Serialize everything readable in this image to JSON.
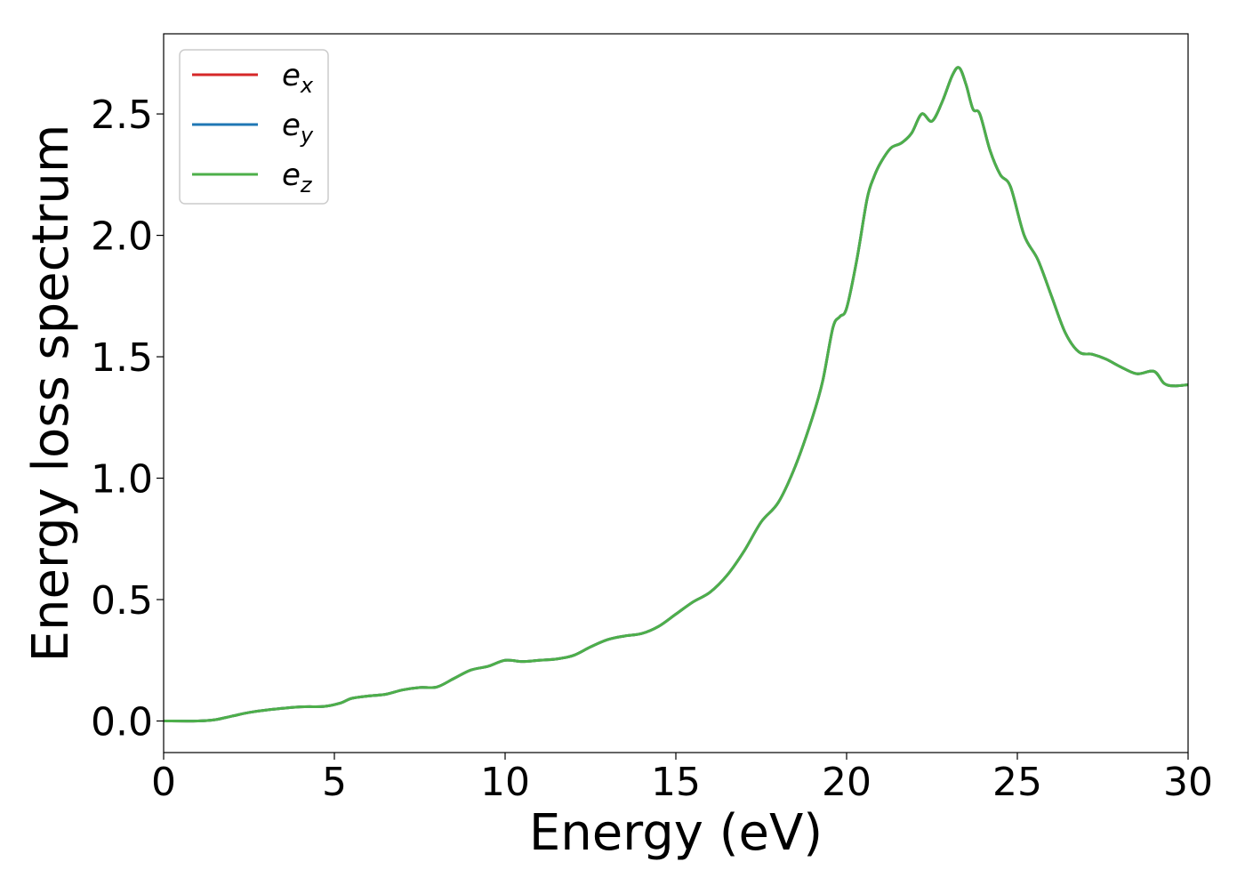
{
  "chart_data": {
    "type": "line",
    "title": "",
    "xlabel": "Energy (eV)",
    "ylabel": "Energy loss spectrum",
    "xlim": [
      0,
      30
    ],
    "ylim": [
      -0.13,
      2.83
    ],
    "xticks": [
      0,
      5,
      10,
      15,
      20,
      25,
      30
    ],
    "yticks": [
      0.0,
      0.5,
      1.0,
      1.5,
      2.0,
      2.5
    ],
    "xtick_labels": [
      "0",
      "5",
      "10",
      "15",
      "20",
      "25",
      "30"
    ],
    "ytick_labels": [
      "0.0",
      "0.5",
      "1.0",
      "1.5",
      "2.0",
      "2.5"
    ],
    "grid": false,
    "legend_position": "top-left",
    "colors": {
      "e_x": "#d62728",
      "e_y": "#1f77b4",
      "e_z": "#4daf4a"
    },
    "series": [
      {
        "name": "e_x",
        "label_base": "e",
        "label_sub": "x",
        "color": "#d62728",
        "x": [
          0,
          1,
          1.5,
          2,
          2.5,
          3,
          4,
          4.7,
          5.2,
          5.5,
          6,
          6.5,
          7,
          7.5,
          8,
          8.5,
          9,
          9.5,
          10,
          10.5,
          11,
          11.5,
          12,
          12.5,
          13,
          13.5,
          14,
          14.5,
          15,
          15.5,
          16,
          16.5,
          17,
          17.5,
          18,
          18.5,
          19,
          19.3,
          19.6,
          19.8,
          20,
          20.3,
          20.6,
          20.8,
          21,
          21.3,
          21.6,
          21.9,
          22.2,
          22.5,
          22.8,
          23.1,
          23.3,
          23.5,
          23.7,
          23.9,
          24.2,
          24.5,
          24.8,
          25.2,
          25.6,
          26,
          26.4,
          26.8,
          27.2,
          27.6,
          28,
          28.5,
          29,
          29.3,
          29.6,
          30
        ],
        "y": [
          0.0,
          0.0,
          0.005,
          0.02,
          0.035,
          0.045,
          0.058,
          0.06,
          0.075,
          0.093,
          0.103,
          0.11,
          0.128,
          0.138,
          0.14,
          0.175,
          0.21,
          0.225,
          0.25,
          0.245,
          0.25,
          0.255,
          0.27,
          0.305,
          0.335,
          0.35,
          0.36,
          0.39,
          0.44,
          0.49,
          0.53,
          0.6,
          0.7,
          0.82,
          0.9,
          1.05,
          1.25,
          1.4,
          1.62,
          1.665,
          1.7,
          1.9,
          2.15,
          2.24,
          2.3,
          2.36,
          2.38,
          2.42,
          2.5,
          2.47,
          2.55,
          2.66,
          2.69,
          2.62,
          2.52,
          2.5,
          2.35,
          2.25,
          2.2,
          2.0,
          1.9,
          1.75,
          1.6,
          1.52,
          1.51,
          1.49,
          1.46,
          1.43,
          1.44,
          1.39,
          1.38,
          1.385
        ]
      },
      {
        "name": "e_y",
        "label_base": "e",
        "label_sub": "y",
        "color": "#1f77b4",
        "x": [
          0,
          1,
          1.5,
          2,
          2.5,
          3,
          4,
          4.7,
          5.2,
          5.5,
          6,
          6.5,
          7,
          7.5,
          8,
          8.5,
          9,
          9.5,
          10,
          10.5,
          11,
          11.5,
          12,
          12.5,
          13,
          13.5,
          14,
          14.5,
          15,
          15.5,
          16,
          16.5,
          17,
          17.5,
          18,
          18.5,
          19,
          19.3,
          19.6,
          19.8,
          20,
          20.3,
          20.6,
          20.8,
          21,
          21.3,
          21.6,
          21.9,
          22.2,
          22.5,
          22.8,
          23.1,
          23.3,
          23.5,
          23.7,
          23.9,
          24.2,
          24.5,
          24.8,
          25.2,
          25.6,
          26,
          26.4,
          26.8,
          27.2,
          27.6,
          28,
          28.5,
          29,
          29.3,
          29.6,
          30
        ],
        "y": [
          0.0,
          0.0,
          0.005,
          0.02,
          0.035,
          0.045,
          0.058,
          0.06,
          0.075,
          0.093,
          0.103,
          0.11,
          0.128,
          0.138,
          0.14,
          0.175,
          0.21,
          0.225,
          0.25,
          0.245,
          0.25,
          0.255,
          0.27,
          0.305,
          0.335,
          0.35,
          0.36,
          0.39,
          0.44,
          0.49,
          0.53,
          0.6,
          0.7,
          0.82,
          0.9,
          1.05,
          1.25,
          1.4,
          1.62,
          1.665,
          1.7,
          1.9,
          2.15,
          2.24,
          2.3,
          2.36,
          2.38,
          2.42,
          2.5,
          2.47,
          2.55,
          2.66,
          2.69,
          2.62,
          2.52,
          2.5,
          2.35,
          2.25,
          2.2,
          2.0,
          1.9,
          1.75,
          1.6,
          1.52,
          1.51,
          1.49,
          1.46,
          1.43,
          1.44,
          1.39,
          1.38,
          1.385
        ]
      },
      {
        "name": "e_z",
        "label_base": "e",
        "label_sub": "z",
        "color": "#4daf4a",
        "x": [
          0,
          1,
          1.5,
          2,
          2.5,
          3,
          4,
          4.7,
          5.2,
          5.5,
          6,
          6.5,
          7,
          7.5,
          8,
          8.5,
          9,
          9.5,
          10,
          10.5,
          11,
          11.5,
          12,
          12.5,
          13,
          13.5,
          14,
          14.5,
          15,
          15.5,
          16,
          16.5,
          17,
          17.5,
          18,
          18.5,
          19,
          19.3,
          19.6,
          19.8,
          20,
          20.3,
          20.6,
          20.8,
          21,
          21.3,
          21.6,
          21.9,
          22.2,
          22.5,
          22.8,
          23.1,
          23.3,
          23.5,
          23.7,
          23.9,
          24.2,
          24.5,
          24.8,
          25.2,
          25.6,
          26,
          26.4,
          26.8,
          27.2,
          27.6,
          28,
          28.5,
          29,
          29.3,
          29.6,
          30
        ],
        "y": [
          0.0,
          0.0,
          0.005,
          0.02,
          0.035,
          0.045,
          0.058,
          0.06,
          0.075,
          0.093,
          0.103,
          0.11,
          0.128,
          0.138,
          0.14,
          0.175,
          0.21,
          0.225,
          0.25,
          0.245,
          0.25,
          0.255,
          0.27,
          0.305,
          0.335,
          0.35,
          0.36,
          0.39,
          0.44,
          0.49,
          0.53,
          0.6,
          0.7,
          0.82,
          0.9,
          1.05,
          1.25,
          1.4,
          1.62,
          1.665,
          1.7,
          1.9,
          2.15,
          2.24,
          2.3,
          2.36,
          2.38,
          2.42,
          2.5,
          2.47,
          2.55,
          2.66,
          2.69,
          2.62,
          2.52,
          2.5,
          2.35,
          2.25,
          2.2,
          2.0,
          1.9,
          1.75,
          1.6,
          1.52,
          1.51,
          1.49,
          1.46,
          1.43,
          1.44,
          1.39,
          1.38,
          1.385
        ]
      }
    ]
  }
}
